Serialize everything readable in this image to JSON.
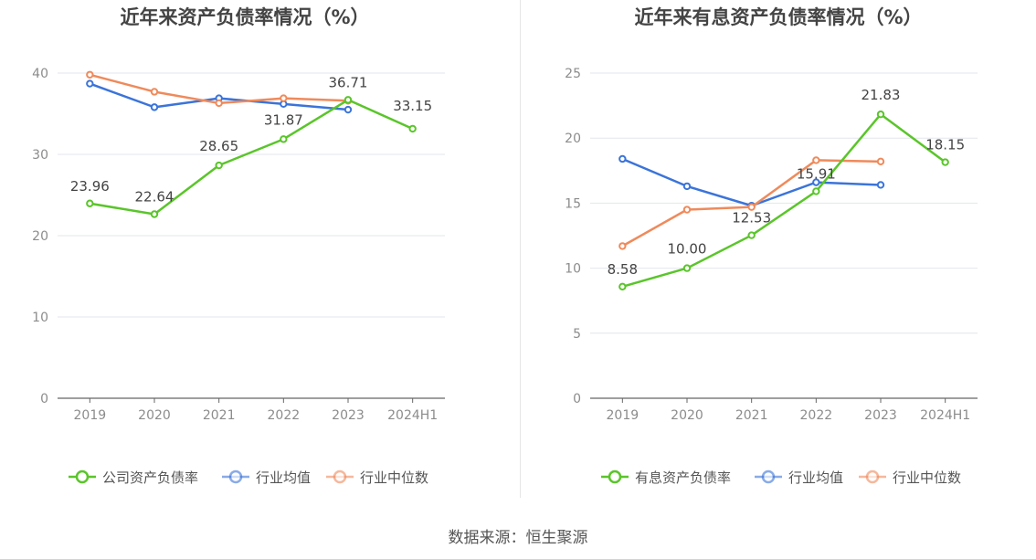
{
  "source": "数据来源：恒生聚源",
  "colors": {
    "company": "#5ac52a",
    "avg": "#3b74d9",
    "median": "#ef8a5b",
    "axis": "#666666",
    "grid": "#e3e6ec",
    "tick": "#8c8c8c",
    "title": "#444444"
  },
  "chart_data": [
    {
      "type": "line",
      "title": "近年来资产负债率情况（%）",
      "categories": [
        "2019",
        "2020",
        "2021",
        "2022",
        "2023",
        "2024H1"
      ],
      "ylim": [
        0,
        40
      ],
      "yticks": [
        0,
        10,
        20,
        30,
        40
      ],
      "grid": true,
      "legend_position": "bottom",
      "series": [
        {
          "name": "公司资产负债率",
          "role": "company",
          "labels": true,
          "values": [
            23.96,
            22.64,
            28.65,
            31.87,
            36.71,
            33.15
          ]
        },
        {
          "name": "行业均值",
          "role": "avg",
          "labels": false,
          "values": [
            38.7,
            35.8,
            36.9,
            36.2,
            35.5,
            null
          ]
        },
        {
          "name": "行业中位数",
          "role": "median",
          "labels": false,
          "values": [
            39.8,
            37.7,
            36.3,
            36.9,
            36.6,
            null
          ]
        }
      ]
    },
    {
      "type": "line",
      "title": "近年来有息资产负债率情况（%）",
      "categories": [
        "2019",
        "2020",
        "2021",
        "2022",
        "2023",
        "2024H1"
      ],
      "ylim": [
        0,
        25
      ],
      "yticks": [
        0,
        5,
        10,
        15,
        20,
        25
      ],
      "grid": true,
      "legend_position": "bottom",
      "series": [
        {
          "name": "有息资产负债率",
          "role": "company",
          "labels": true,
          "values": [
            8.58,
            10.0,
            12.53,
            15.91,
            21.83,
            18.15
          ]
        },
        {
          "name": "行业均值",
          "role": "avg",
          "labels": false,
          "values": [
            18.4,
            16.3,
            14.8,
            16.6,
            16.4,
            null
          ]
        },
        {
          "name": "行业中位数",
          "role": "median",
          "labels": false,
          "values": [
            11.7,
            14.5,
            14.7,
            18.3,
            18.2,
            null
          ]
        }
      ]
    }
  ]
}
